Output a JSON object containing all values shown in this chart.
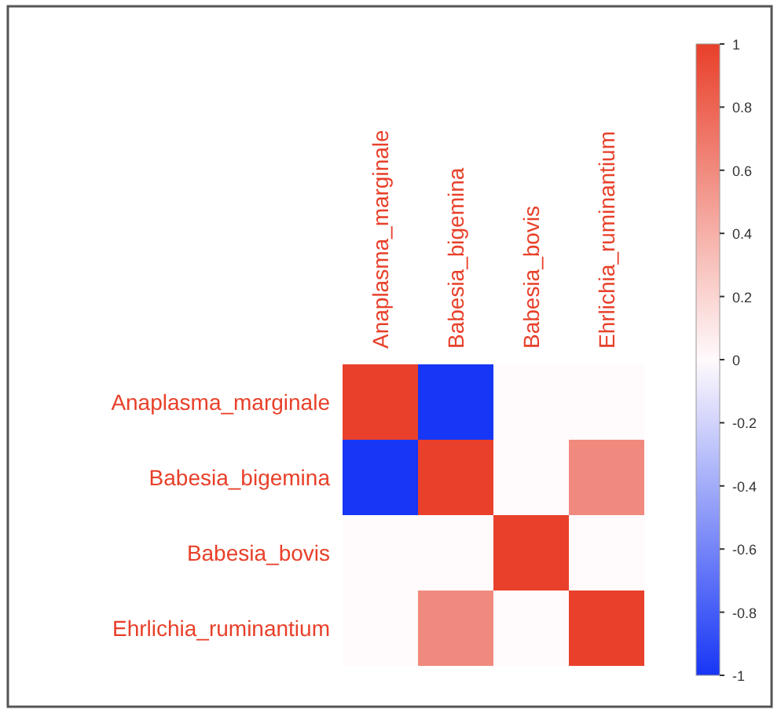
{
  "chart_data": {
    "type": "heatmap",
    "categories": [
      "Anaplasma_marginale",
      "Babesia_bigemina",
      "Babesia_bovis",
      "Ehrlichia_ruminantium"
    ],
    "y_categories": [
      "Anaplasma_marginale",
      "Babesia_bigemina",
      "Babesia_bovis",
      "Ehrlichia_ruminantium"
    ],
    "cells": [
      [
        1,
        -1,
        0,
        0
      ],
      [
        -1,
        1,
        0,
        0.6
      ],
      [
        0,
        0,
        1,
        0
      ],
      [
        0,
        0.6,
        0,
        1
      ]
    ],
    "clim": [
      -1,
      1
    ],
    "cticks": [
      1,
      0.8,
      0.6,
      0.4,
      0.2,
      0,
      -0.2,
      -0.4,
      -0.6,
      -0.8,
      -1
    ]
  }
}
